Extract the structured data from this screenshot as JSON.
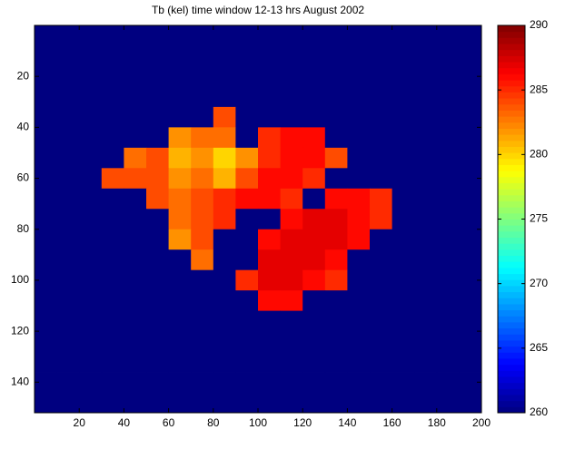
{
  "chart_data": {
    "type": "heatmap",
    "title": "Tb (kel) time window 12-13 hrs August 2002",
    "colormap": "jet",
    "x": [
      5,
      15,
      25,
      35,
      45,
      55,
      65,
      75,
      85,
      95,
      105,
      115,
      125,
      135,
      145,
      155,
      165,
      175,
      185,
      195
    ],
    "y": [
      4,
      12,
      20,
      28,
      36,
      44,
      52,
      60,
      68,
      76,
      84,
      92,
      100,
      108,
      116,
      124,
      132,
      140,
      148
    ],
    "z": [
      [
        260,
        260,
        260,
        260,
        260,
        260,
        260,
        260,
        260,
        260,
        260,
        260,
        260,
        260,
        260,
        260,
        260,
        260,
        260,
        260
      ],
      [
        260,
        260,
        260,
        260,
        260,
        260,
        260,
        260,
        260,
        260,
        260,
        260,
        260,
        260,
        260,
        260,
        260,
        260,
        260,
        260
      ],
      [
        260,
        260,
        260,
        260,
        260,
        260,
        260,
        260,
        260,
        260,
        260,
        260,
        260,
        260,
        260,
        260,
        260,
        260,
        260,
        260
      ],
      [
        260,
        260,
        260,
        260,
        260,
        260,
        260,
        260,
        260,
        260,
        260,
        260,
        260,
        260,
        260,
        260,
        260,
        260,
        260,
        260
      ],
      [
        260,
        260,
        260,
        260,
        260,
        260,
        260,
        260,
        284,
        260,
        260,
        260,
        260,
        260,
        260,
        260,
        260,
        260,
        260,
        260
      ],
      [
        260,
        260,
        260,
        260,
        260,
        260,
        282,
        283,
        283,
        260,
        285,
        286,
        286,
        260,
        260,
        260,
        260,
        260,
        260,
        260
      ],
      [
        260,
        260,
        260,
        260,
        283,
        284,
        281,
        282,
        280,
        282,
        285,
        286,
        286,
        284,
        260,
        260,
        260,
        260,
        260,
        260
      ],
      [
        260,
        260,
        260,
        284,
        284,
        284,
        282,
        283,
        281,
        284,
        286,
        286,
        285,
        260,
        260,
        260,
        260,
        260,
        260,
        260
      ],
      [
        260,
        260,
        260,
        260,
        260,
        284,
        283,
        284,
        285,
        286,
        286,
        285,
        260,
        286,
        286,
        285,
        260,
        260,
        260,
        260
      ],
      [
        260,
        260,
        260,
        260,
        260,
        260,
        283,
        284,
        285,
        260,
        260,
        286,
        287,
        287,
        286,
        285,
        260,
        260,
        260,
        260
      ],
      [
        260,
        260,
        260,
        260,
        260,
        260,
        282,
        284,
        260,
        260,
        286,
        287,
        287,
        287,
        286,
        260,
        260,
        260,
        260,
        260
      ],
      [
        260,
        260,
        260,
        260,
        260,
        260,
        260,
        283,
        260,
        260,
        287,
        287,
        287,
        286,
        260,
        260,
        260,
        260,
        260,
        260
      ],
      [
        260,
        260,
        260,
        260,
        260,
        260,
        260,
        260,
        260,
        285,
        287,
        287,
        286,
        285,
        260,
        260,
        260,
        260,
        260,
        260
      ],
      [
        260,
        260,
        260,
        260,
        260,
        260,
        260,
        260,
        260,
        260,
        286,
        286,
        260,
        260,
        260,
        260,
        260,
        260,
        260,
        260
      ],
      [
        260,
        260,
        260,
        260,
        260,
        260,
        260,
        260,
        260,
        260,
        260,
        260,
        260,
        260,
        260,
        260,
        260,
        260,
        260,
        260
      ],
      [
        260,
        260,
        260,
        260,
        260,
        260,
        260,
        260,
        260,
        260,
        260,
        260,
        260,
        260,
        260,
        260,
        260,
        260,
        260,
        260
      ],
      [
        260,
        260,
        260,
        260,
        260,
        260,
        260,
        260,
        260,
        260,
        260,
        260,
        260,
        260,
        260,
        260,
        260,
        260,
        260,
        260
      ],
      [
        260,
        260,
        260,
        260,
        260,
        260,
        260,
        260,
        260,
        260,
        260,
        260,
        260,
        260,
        260,
        260,
        260,
        260,
        260,
        260
      ],
      [
        260,
        260,
        260,
        260,
        260,
        260,
        260,
        260,
        260,
        260,
        260,
        260,
        260,
        260,
        260,
        260,
        260,
        260,
        260,
        260
      ]
    ],
    "xlim": [
      0,
      200
    ],
    "xticks": [
      20,
      40,
      60,
      80,
      100,
      120,
      140,
      160,
      180,
      200
    ],
    "ylim": [
      0,
      152
    ],
    "yticks": [
      20,
      40,
      60,
      80,
      100,
      120,
      140
    ],
    "colorbar": {
      "lim": [
        260,
        290
      ],
      "ticks": [
        260,
        265,
        270,
        275,
        280,
        285,
        290
      ]
    }
  }
}
